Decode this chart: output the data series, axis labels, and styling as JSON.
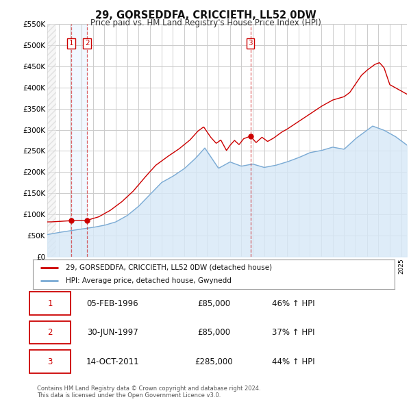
{
  "title": "29, GORSEDDFA, CRICCIETH, LL52 0DW",
  "subtitle": "Price paid vs. HM Land Registry's House Price Index (HPI)",
  "legend_line1": "29, GORSEDDFA, CRICCIETH, LL52 0DW (detached house)",
  "legend_line2": "HPI: Average price, detached house, Gwynedd",
  "table_rows": [
    {
      "num": "1",
      "date": "05-FEB-1996",
      "price": "£85,000",
      "hpi": "46% ↑ HPI"
    },
    {
      "num": "2",
      "date": "30-JUN-1997",
      "price": "£85,000",
      "hpi": "37% ↑ HPI"
    },
    {
      "num": "3",
      "date": "14-OCT-2011",
      "price": "£285,000",
      "hpi": "44% ↑ HPI"
    }
  ],
  "footnote1": "Contains HM Land Registry data © Crown copyright and database right 2024.",
  "footnote2": "This data is licensed under the Open Government Licence v3.0.",
  "xmin": 1994.0,
  "xmax": 2025.5,
  "ymin": 0,
  "ymax": 550000,
  "yticks": [
    0,
    50000,
    100000,
    150000,
    200000,
    250000,
    300000,
    350000,
    400000,
    450000,
    500000,
    550000
  ],
  "ytick_labels": [
    "£0",
    "£50K",
    "£100K",
    "£150K",
    "£200K",
    "£250K",
    "£300K",
    "£350K",
    "£400K",
    "£450K",
    "£500K",
    "£550K"
  ],
  "sale_color": "#cc0000",
  "hpi_color": "#7aaad4",
  "hpi_fill_color": "#d6e8f7",
  "vline_color": "#cc0000",
  "vline_alpha": 0.6,
  "sale_marker_color": "#cc0000",
  "grid_color": "#cccccc",
  "background_color": "#ffffff",
  "sale_points_x": [
    1996.09,
    1997.5,
    2011.79
  ],
  "sale_points_y": [
    85000,
    85000,
    285000
  ],
  "vline_x": [
    1996.09,
    1997.5,
    2011.79
  ],
  "sale_labels": [
    "1",
    "2",
    "3"
  ],
  "hpi_start_year": 1994.5,
  "price_start_year": 1994.5
}
